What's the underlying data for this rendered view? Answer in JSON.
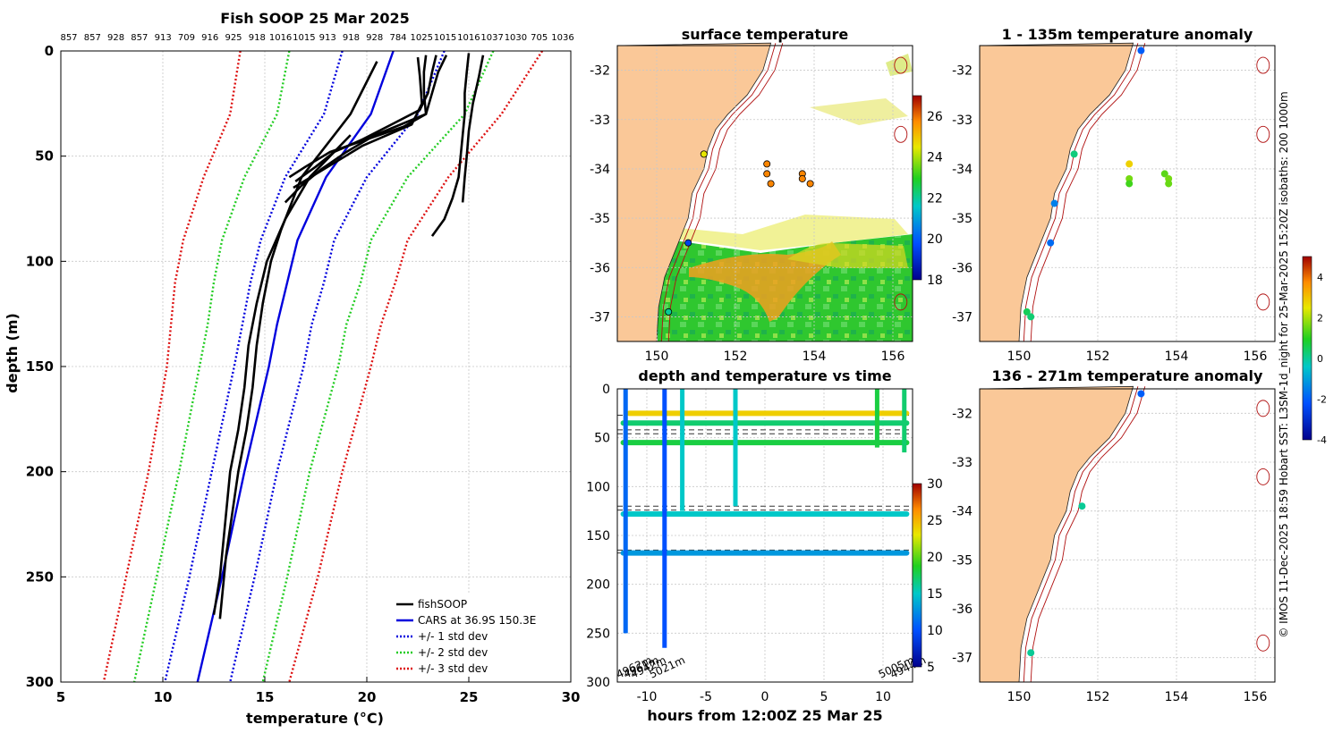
{
  "chart_data": [
    {
      "type": "line",
      "title": "Fish SOOP 25 Mar 2025",
      "xlabel": "temperature (°C)",
      "ylabel": "depth (m)",
      "xlim": [
        5,
        30
      ],
      "ylim": [
        300,
        0
      ],
      "xticks": [
        5,
        10,
        15,
        20,
        25,
        30
      ],
      "yticks": [
        0,
        50,
        100,
        150,
        200,
        250,
        300
      ],
      "top_labels": [
        "857",
        "857",
        "928",
        "857",
        "913",
        "709",
        "916",
        "925",
        "918",
        "1016",
        "1015",
        "913",
        "918",
        "928",
        "784",
        "1025",
        "1015",
        "1016",
        "1037",
        "1030",
        "705",
        "1036"
      ],
      "legend": {
        "position": "bottom-right",
        "entries": [
          "fishSOOP",
          "CARS at 36.9S 150.3E",
          "+/- 1 std dev",
          "+/- 2 std dev",
          "+/- 3 std dev"
        ]
      },
      "series": [
        {
          "name": "CARS",
          "color": "#0000dd",
          "depth": [
            0,
            30,
            60,
            90,
            110,
            130,
            150,
            200,
            250,
            300
          ],
          "temp": [
            21.3,
            20.2,
            18.0,
            16.6,
            16.1,
            15.6,
            15.2,
            14.0,
            12.9,
            11.7
          ]
        },
        {
          "name": "+/- 1 std dev low",
          "color": "#0000dd",
          "depth": [
            0,
            30,
            60,
            90,
            110,
            130,
            150,
            200,
            250,
            300
          ],
          "temp": [
            18.8,
            17.9,
            16.0,
            14.8,
            14.3,
            13.9,
            13.5,
            12.4,
            11.3,
            10.1
          ]
        },
        {
          "name": "+/- 1 std dev high",
          "color": "#0000dd",
          "depth": [
            0,
            30,
            60,
            90,
            110,
            130,
            150,
            200,
            250,
            300
          ],
          "temp": [
            23.8,
            22.5,
            20.0,
            18.4,
            17.9,
            17.3,
            16.9,
            15.6,
            14.5,
            13.3
          ]
        },
        {
          "name": "+/- 2 std dev low",
          "color": "#22cc22",
          "depth": [
            0,
            30,
            60,
            90,
            110,
            130,
            150,
            200,
            250,
            300
          ],
          "temp": [
            16.2,
            15.6,
            14.0,
            12.9,
            12.5,
            12.2,
            11.8,
            10.8,
            9.7,
            8.6
          ]
        },
        {
          "name": "+/- 2 std dev high",
          "color": "#22cc22",
          "depth": [
            0,
            30,
            60,
            90,
            110,
            130,
            150,
            200,
            250,
            300
          ],
          "temp": [
            26.2,
            24.8,
            22.0,
            20.2,
            19.7,
            19.0,
            18.6,
            17.2,
            16.1,
            14.9
          ]
        },
        {
          "name": "+/- 3 std dev low",
          "color": "#dd1111",
          "depth": [
            0,
            30,
            60,
            90,
            110,
            130,
            150,
            200,
            250,
            300
          ],
          "temp": [
            13.8,
            13.3,
            12.0,
            11.0,
            10.6,
            10.4,
            10.2,
            9.3,
            8.2,
            7.1
          ]
        },
        {
          "name": "+/- 3 std dev high",
          "color": "#dd1111",
          "depth": [
            0,
            30,
            60,
            90,
            110,
            130,
            150,
            200,
            250,
            300
          ],
          "temp": [
            28.6,
            26.6,
            24.0,
            22.0,
            21.4,
            20.7,
            20.2,
            18.8,
            17.6,
            16.2
          ]
        },
        {
          "name": "fishSOOP 1",
          "color": "#000000",
          "depth": [
            2,
            10,
            20,
            30,
            36,
            42,
            48,
            55,
            60
          ],
          "temp": [
            22.9,
            22.8,
            22.8,
            22.9,
            21.8,
            20.0,
            18.2,
            17.0,
            16.2
          ]
        },
        {
          "name": "fishSOOP 2",
          "color": "#000000",
          "depth": [
            2,
            10,
            20,
            28,
            35,
            42,
            48,
            55,
            62
          ],
          "temp": [
            23.4,
            23.2,
            23.0,
            22.6,
            21.2,
            19.8,
            18.4,
            17.5,
            16.5
          ]
        },
        {
          "name": "fishSOOP 3",
          "color": "#000000",
          "depth": [
            2,
            10,
            20,
            30,
            40,
            48,
            56,
            64,
            72
          ],
          "temp": [
            23.9,
            23.5,
            23.2,
            22.9,
            20.4,
            19.0,
            17.8,
            16.8,
            16.0
          ]
        },
        {
          "name": "fishSOOP 4",
          "color": "#000000",
          "depth": [
            3,
            12,
            25,
            35,
            45,
            55,
            65
          ],
          "temp": [
            22.5,
            22.6,
            22.7,
            22.2,
            19.8,
            18.1,
            16.4
          ]
        },
        {
          "name": "fishSOOP 5",
          "color": "#000000",
          "depth": [
            5,
            30,
            60,
            85,
            100,
            120,
            140,
            160,
            180,
            200,
            220,
            240,
            260,
            270
          ],
          "temp": [
            20.5,
            19.2,
            16.8,
            15.8,
            15.3,
            14.9,
            14.6,
            14.4,
            14.1,
            13.7,
            13.4,
            13.1,
            12.9,
            12.8
          ]
        },
        {
          "name": "fishSOOP 6",
          "color": "#000000",
          "depth": [
            40,
            60,
            80,
            100,
            120,
            140,
            160,
            180,
            200,
            230,
            250,
            268
          ],
          "temp": [
            19.2,
            17.2,
            16.0,
            15.1,
            14.6,
            14.2,
            14.0,
            13.7,
            13.3,
            13.0,
            12.8,
            12.5
          ]
        },
        {
          "name": "fishSOOP 7",
          "color": "#000000",
          "depth": [
            1,
            10,
            20,
            30,
            40,
            50,
            60,
            70,
            80,
            88
          ],
          "temp": [
            25.0,
            24.9,
            24.8,
            24.8,
            24.7,
            24.6,
            24.5,
            24.2,
            23.8,
            23.2
          ]
        },
        {
          "name": "fishSOOP 8",
          "color": "#000000",
          "depth": [
            2,
            12,
            25,
            38,
            50,
            60,
            72
          ],
          "temp": [
            25.7,
            25.5,
            25.2,
            25.0,
            24.9,
            24.8,
            24.7
          ]
        }
      ]
    },
    {
      "type": "heatmap",
      "title": "surface temperature",
      "xlim": [
        149,
        156.5
      ],
      "ylim": [
        -37.5,
        -31.5
      ],
      "xticks": [
        150,
        152,
        154,
        156
      ],
      "yticks": [
        -32,
        -33,
        -34,
        -35,
        -36,
        -37
      ],
      "colorbar": {
        "min": 18,
        "max": 27,
        "ticks": [
          18,
          20,
          22,
          24,
          26
        ]
      },
      "points": [
        {
          "lon": 150.8,
          "lat": -35.5,
          "temp": 19.5
        },
        {
          "lon": 151.2,
          "lat": -33.7,
          "temp": 24.5
        },
        {
          "lon": 152.8,
          "lat": -33.9,
          "temp": 25.8
        },
        {
          "lon": 152.8,
          "lat": -34.1,
          "temp": 25.8
        },
        {
          "lon": 152.9,
          "lat": -34.3,
          "temp": 25.8
        },
        {
          "lon": 153.7,
          "lat": -34.1,
          "temp": 25.8
        },
        {
          "lon": 153.7,
          "lat": -34.2,
          "temp": 25.8
        },
        {
          "lon": 153.9,
          "lat": -34.3,
          "temp": 25.8
        },
        {
          "lon": 150.3,
          "lat": -36.9,
          "temp": 22.0
        }
      ]
    },
    {
      "type": "scatter",
      "title": "depth and temperature vs time",
      "xlabel": "hours from 12:00Z 25 Mar 25",
      "xlim": [
        -12.5,
        12.5
      ],
      "ylim": [
        300,
        0
      ],
      "xticks": [
        -10,
        -5,
        0,
        5,
        10
      ],
      "yticks": [
        0,
        50,
        100,
        150,
        200,
        250,
        300
      ],
      "colorbar": {
        "min": 5,
        "max": 30,
        "ticks": [
          5,
          10,
          15,
          20,
          25,
          30
        ]
      },
      "reference_depths": [
        27,
        42,
        46,
        120,
        124,
        165,
        168
      ],
      "bottom_labels": [
        "4962m",
        "4961m",
        "4942m",
        "5021m",
        "5005m",
        "4944m"
      ],
      "segments": [
        {
          "hours": [
            -12,
            12
          ],
          "depth": 35,
          "temp": 17
        },
        {
          "hours": [
            -12,
            12
          ],
          "depth": 55,
          "temp": 18
        },
        {
          "hours": [
            -12,
            12
          ],
          "depth": 128,
          "temp": 15
        },
        {
          "hours": [
            -12,
            12
          ],
          "depth": 168,
          "temp": 13
        },
        {
          "hours": [
            -11.5,
            12
          ],
          "depth": 25,
          "temp": 24
        }
      ],
      "profiles": [
        {
          "hour": -11.8,
          "max_depth": 250,
          "temp_bottom": 11
        },
        {
          "hour": -8.5,
          "max_depth": 265,
          "temp_bottom": 10
        },
        {
          "hour": -7.0,
          "max_depth": 125,
          "temp_bottom": 15
        },
        {
          "hour": -2.5,
          "max_depth": 120,
          "temp_bottom": 15
        },
        {
          "hour": 9.5,
          "max_depth": 60,
          "temp_bottom": 18
        },
        {
          "hour": 11.8,
          "max_depth": 65,
          "temp_bottom": 17
        }
      ]
    },
    {
      "type": "scatter",
      "title": "1 - 135m temperature anomaly",
      "xlim": [
        149,
        156.5
      ],
      "ylim": [
        -37.5,
        -31.5
      ],
      "xticks": [
        150,
        152,
        154,
        156
      ],
      "yticks": [
        -32,
        -33,
        -34,
        -35,
        -36,
        -37
      ],
      "points": [
        {
          "lon": 153.1,
          "lat": -31.6,
          "anom": -2.0
        },
        {
          "lon": 151.4,
          "lat": -33.7,
          "anom": 0.2
        },
        {
          "lon": 150.9,
          "lat": -34.7,
          "anom": -1.5
        },
        {
          "lon": 150.8,
          "lat": -35.5,
          "anom": -1.8
        },
        {
          "lon": 150.2,
          "lat": -36.9,
          "anom": 0.5
        },
        {
          "lon": 150.3,
          "lat": -37.0,
          "anom": 0.3
        },
        {
          "lon": 152.8,
          "lat": -33.9,
          "anom": 2.8
        },
        {
          "lon": 152.8,
          "lat": -34.2,
          "anom": 1.6
        },
        {
          "lon": 152.8,
          "lat": -34.3,
          "anom": 1.2
        },
        {
          "lon": 153.7,
          "lat": -34.1,
          "anom": 1.4
        },
        {
          "lon": 153.8,
          "lat": -34.2,
          "anom": 1.6
        },
        {
          "lon": 153.8,
          "lat": -34.3,
          "anom": 1.5
        }
      ]
    },
    {
      "type": "scatter",
      "title": "136 - 271m temperature anomaly",
      "xlim": [
        149,
        156.5
      ],
      "ylim": [
        -37.5,
        -31.5
      ],
      "xticks": [
        150,
        152,
        154,
        156
      ],
      "yticks": [
        -32,
        -33,
        -34,
        -35,
        -36,
        -37
      ],
      "colorbar": {
        "min": -4,
        "max": 5,
        "ticks": [
          -4,
          -2,
          0,
          2,
          4
        ]
      },
      "points": [
        {
          "lon": 153.1,
          "lat": -31.6,
          "anom": -2.0
        },
        {
          "lon": 151.6,
          "lat": -33.9,
          "anom": 0.0
        },
        {
          "lon": 150.3,
          "lat": -36.9,
          "anom": 0.0
        }
      ]
    }
  ],
  "credit": "© IMOS 11-Dec-2025 18:59 Hobart SST: L3SM-1d_night for 25-Mar-2025 15:20Z isobaths: 200  1000m"
}
